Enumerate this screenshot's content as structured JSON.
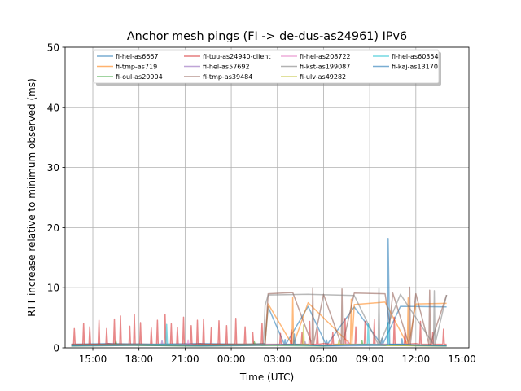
{
  "chart_data": {
    "type": "line",
    "title": "Anchor mesh pings (FI -> de-dus-as24961) IPv6",
    "xlabel": "Time (UTC)",
    "ylabel": "RTT increase relative to minimum observed (ms)",
    "ylim": [
      0,
      50
    ],
    "xlim_hours": [
      -10.8,
      15.45
    ],
    "yticks": [
      0,
      10,
      20,
      30,
      40,
      50
    ],
    "xticks": [
      {
        "label": "15:00",
        "hour": -9
      },
      {
        "label": "18:00",
        "hour": -6
      },
      {
        "label": "21:00",
        "hour": -3
      },
      {
        "label": "00:00",
        "hour": 0
      },
      {
        "label": "03:00",
        "hour": 3
      },
      {
        "label": "06:00",
        "hour": 6
      },
      {
        "label": "09:00",
        "hour": 9
      },
      {
        "label": "12:00",
        "hour": 12
      },
      {
        "label": "15:00",
        "hour": 15
      }
    ],
    "grid": true,
    "legend_position": "top-center",
    "legend_columns": 4,
    "series": [
      {
        "name": "fi-hel-as6667",
        "color": "#1f77b4",
        "points": [
          [
            -10.4,
            0.6
          ],
          [
            -8,
            0.7
          ],
          [
            -5,
            0.6
          ],
          [
            -2,
            0.7
          ],
          [
            1,
            0.6
          ],
          [
            2.2,
            0.7
          ],
          [
            2.4,
            6.8
          ],
          [
            5,
            6.9
          ],
          [
            8,
            6.8
          ],
          [
            11,
            6.9
          ],
          [
            14,
            6.8
          ]
        ],
        "spikes": [
          [
            3.5,
            1.4
          ],
          [
            6.2,
            1.3
          ],
          [
            9.8,
            1.6
          ]
        ]
      },
      {
        "name": "fi-tmp-as719",
        "color": "#ff7f0e",
        "points": [
          [
            -10.4,
            0.5
          ],
          [
            -7,
            0.6
          ],
          [
            -3,
            0.5
          ],
          [
            0,
            0.6
          ],
          [
            2.2,
            0.6
          ],
          [
            2.4,
            7.3
          ],
          [
            5,
            7.5
          ],
          [
            8,
            7.2
          ],
          [
            10,
            7.6
          ],
          [
            12,
            7.3
          ],
          [
            14,
            7.4
          ]
        ],
        "spikes": [
          [
            4,
            8.4
          ],
          [
            7.8,
            8.1
          ],
          [
            11.5,
            8.3
          ]
        ]
      },
      {
        "name": "fi-oul-as20904",
        "color": "#2ca02c",
        "points": [
          [
            -10.4,
            0.3
          ],
          [
            -6,
            0.4
          ],
          [
            -2,
            0.3
          ],
          [
            2,
            0.4
          ],
          [
            6,
            0.3
          ],
          [
            10,
            0.4
          ],
          [
            14,
            0.3
          ]
        ],
        "spikes": [
          [
            -7.5,
            1.1
          ],
          [
            1.5,
            1.0
          ],
          [
            8.5,
            1.2
          ]
        ]
      },
      {
        "name": "fi-tuu-as24940-client",
        "color": "#d62728",
        "points": [
          [
            -10.4,
            0.6
          ],
          [
            -8,
            0.7
          ],
          [
            -5,
            0.6
          ],
          [
            -2,
            0.7
          ],
          [
            0,
            0.6
          ],
          [
            3,
            0.6
          ],
          [
            6,
            0.7
          ],
          [
            9,
            0.6
          ],
          [
            12,
            0.7
          ],
          [
            14,
            0.6
          ]
        ],
        "spikes": [
          [
            -10.2,
            3.2
          ],
          [
            -9.6,
            4.1
          ],
          [
            -9.2,
            3.5
          ],
          [
            -8.6,
            4.6
          ],
          [
            -8.1,
            3.2
          ],
          [
            -7.6,
            4.8
          ],
          [
            -7.2,
            5.3
          ],
          [
            -6.6,
            3.6
          ],
          [
            -6.3,
            5.6
          ],
          [
            -5.9,
            4.2
          ],
          [
            -5.2,
            3.3
          ],
          [
            -4.8,
            4.6
          ],
          [
            -4.3,
            5.6
          ],
          [
            -3.9,
            4.0
          ],
          [
            -3.5,
            3.4
          ],
          [
            -3.1,
            5.1
          ],
          [
            -2.6,
            3.7
          ],
          [
            -2.2,
            4.6
          ],
          [
            -1.8,
            4.8
          ],
          [
            -1.3,
            3.3
          ],
          [
            -0.8,
            4.5
          ],
          [
            -0.3,
            3.7
          ],
          [
            0.3,
            4.9
          ],
          [
            0.9,
            3.5
          ],
          [
            1.4,
            2.6
          ],
          [
            2.0,
            4.1
          ],
          [
            3.2,
            2.4
          ],
          [
            3.9,
            3.0
          ],
          [
            4.6,
            2.6
          ],
          [
            5.1,
            4.4
          ],
          [
            5.6,
            3.1
          ],
          [
            6.6,
            2.6
          ],
          [
            7.4,
            4.9
          ],
          [
            8.1,
            3.5
          ],
          [
            8.7,
            4.4
          ],
          [
            9.3,
            4.7
          ],
          [
            10.6,
            5.1
          ],
          [
            11.3,
            3.0
          ],
          [
            12.3,
            4.4
          ],
          [
            13.1,
            2.6
          ],
          [
            13.8,
            3.1
          ]
        ]
      },
      {
        "name": "fi-hel-as57692",
        "color": "#9467bd",
        "points": [
          [
            -10.4,
            0.4
          ],
          [
            -6,
            0.5
          ],
          [
            -2,
            0.4
          ],
          [
            2,
            0.5
          ],
          [
            6,
            0.4
          ],
          [
            10,
            0.5
          ],
          [
            14,
            0.4
          ]
        ],
        "spikes": [
          [
            -4.5,
            1.2
          ],
          [
            4.8,
            1.0
          ]
        ]
      },
      {
        "name": "fi-tmp-as39484",
        "color": "#8c564b",
        "points": [
          [
            -10.4,
            0.5
          ],
          [
            -6,
            0.6
          ],
          [
            -2,
            0.5
          ],
          [
            1,
            0.6
          ],
          [
            2.2,
            0.6
          ],
          [
            2.4,
            9.0
          ],
          [
            4,
            9.2
          ],
          [
            6,
            8.9
          ],
          [
            8,
            9.1
          ],
          [
            10,
            9.0
          ],
          [
            10.3,
            4.0
          ],
          [
            10.5,
            9.1
          ],
          [
            12,
            9.0
          ],
          [
            14,
            8.8
          ]
        ],
        "spikes": [
          [
            5.3,
            10.0
          ],
          [
            7.2,
            9.8
          ],
          [
            11.6,
            10.1
          ],
          [
            12.9,
            9.6
          ]
        ]
      },
      {
        "name": "fi-hel-as208722",
        "color": "#e377c2",
        "points": [
          [
            -10.4,
            0.4
          ],
          [
            -6,
            0.5
          ],
          [
            -2,
            0.4
          ],
          [
            2,
            0.5
          ],
          [
            6,
            0.4
          ],
          [
            10,
            0.5
          ],
          [
            14,
            0.4
          ]
        ],
        "spikes": [
          [
            -2.8,
            1.3
          ],
          [
            7.6,
            1.2
          ]
        ]
      },
      {
        "name": "fi-kst-as199087",
        "color": "#7f7f7f",
        "points": [
          [
            -10.4,
            0.5
          ],
          [
            -6,
            0.6
          ],
          [
            -2,
            0.5
          ],
          [
            1,
            0.6
          ],
          [
            2.1,
            0.6
          ],
          [
            2.2,
            7.0
          ],
          [
            2.4,
            8.8
          ],
          [
            5,
            8.9
          ],
          [
            8,
            8.7
          ],
          [
            11,
            8.9
          ],
          [
            14,
            8.8
          ]
        ],
        "spikes": [
          [
            9.6,
            10.0
          ],
          [
            13.2,
            9.5
          ]
        ]
      },
      {
        "name": "fi-ulv-as49282",
        "color": "#bcbd22",
        "points": [
          [
            -10.4,
            0.3
          ],
          [
            -6,
            0.4
          ],
          [
            -2,
            0.3
          ],
          [
            2,
            0.4
          ],
          [
            6,
            0.3
          ],
          [
            10,
            0.4
          ],
          [
            14,
            0.3
          ]
        ],
        "spikes": [
          [
            4.7,
            3.8
          ],
          [
            7.0,
            1.2
          ]
        ]
      },
      {
        "name": "fi-hel-as60354",
        "color": "#17becf",
        "points": [
          [
            -10.4,
            0.4
          ],
          [
            -6,
            0.5
          ],
          [
            -2,
            0.4
          ],
          [
            2,
            0.5
          ],
          [
            6,
            0.4
          ],
          [
            10,
            0.5
          ],
          [
            14,
            0.4
          ]
        ],
        "spikes": [
          [
            -4.2,
            3.9
          ],
          [
            8.9,
            4.0
          ],
          [
            10.2,
            4.2
          ]
        ]
      },
      {
        "name": "fi-kaj-as13170",
        "color": "#1f77b4",
        "points": [
          [
            -10.4,
            0.3
          ],
          [
            -6,
            0.4
          ],
          [
            -2,
            0.3
          ],
          [
            2,
            0.4
          ],
          [
            6,
            0.3
          ],
          [
            10,
            0.4
          ],
          [
            10.15,
            0.5
          ],
          [
            10.2,
            18.2
          ],
          [
            10.3,
            0.6
          ],
          [
            12,
            0.4
          ],
          [
            14,
            0.3
          ]
        ],
        "spikes": [
          [
            4.1,
            2.3
          ],
          [
            11.1,
            1.5
          ]
        ]
      }
    ]
  }
}
